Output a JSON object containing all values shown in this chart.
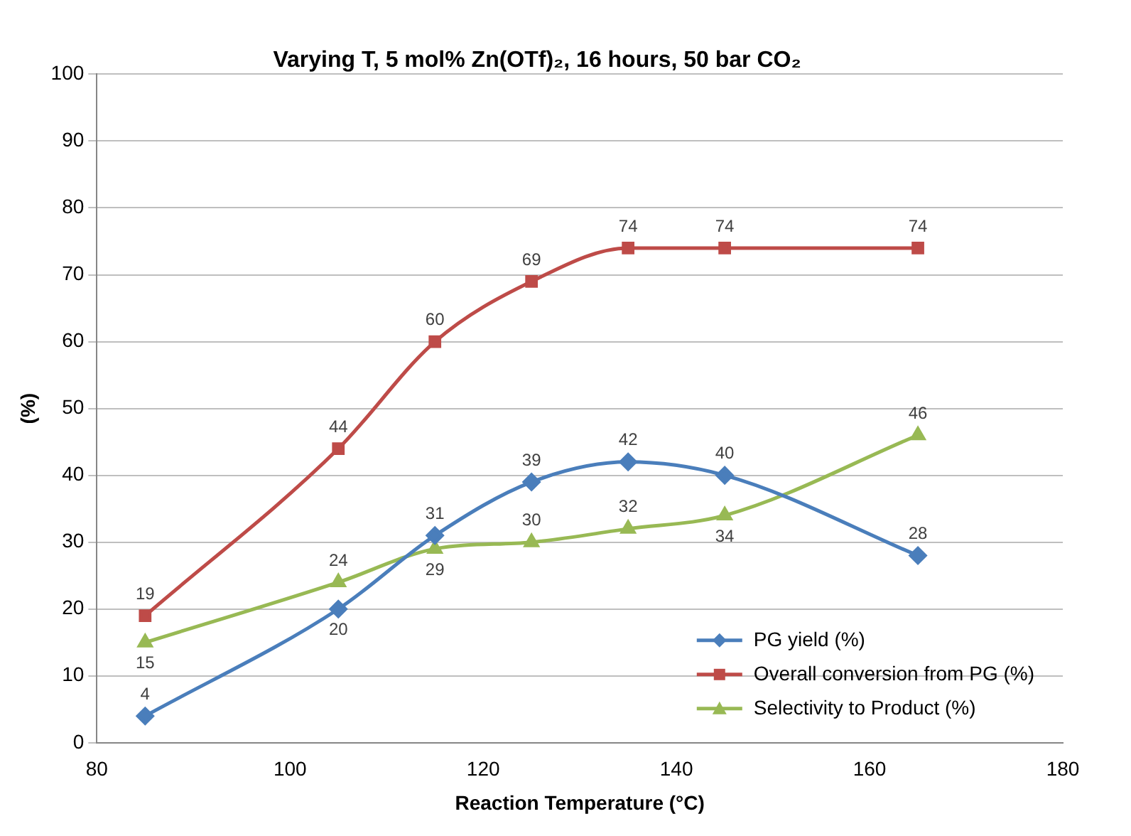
{
  "chart_data": {
    "type": "line",
    "title": "Varying T, 5 mol% Zn(OTf)₂, 16 hours, 50 bar CO₂",
    "xlabel": "Reaction Temperature (°C)",
    "ylabel": "(%)",
    "x": [
      85,
      105,
      115,
      125,
      135,
      145,
      165
    ],
    "series": [
      {
        "name": "PG yield (%)",
        "color": "#4a7ebb",
        "marker": "diamond",
        "values": [
          4,
          20,
          31,
          39,
          42,
          40,
          28
        ]
      },
      {
        "name": "Overall conversion from PG (%)",
        "color": "#be4b48",
        "marker": "square",
        "values": [
          19,
          44,
          60,
          69,
          74,
          74,
          74
        ]
      },
      {
        "name": "Selectivity to Product (%)",
        "color": "#98b954",
        "marker": "triangle",
        "values": [
          15,
          24,
          29,
          30,
          32,
          34,
          46
        ]
      }
    ],
    "xlim": [
      80,
      180
    ],
    "xticks": [
      80,
      100,
      120,
      140,
      160,
      180
    ],
    "ylim": [
      0,
      100
    ],
    "yticks": [
      0,
      10,
      20,
      30,
      40,
      50,
      60,
      70,
      80,
      90,
      100
    ],
    "grid": "y",
    "legend": "bottom right",
    "data_labels": true
  }
}
